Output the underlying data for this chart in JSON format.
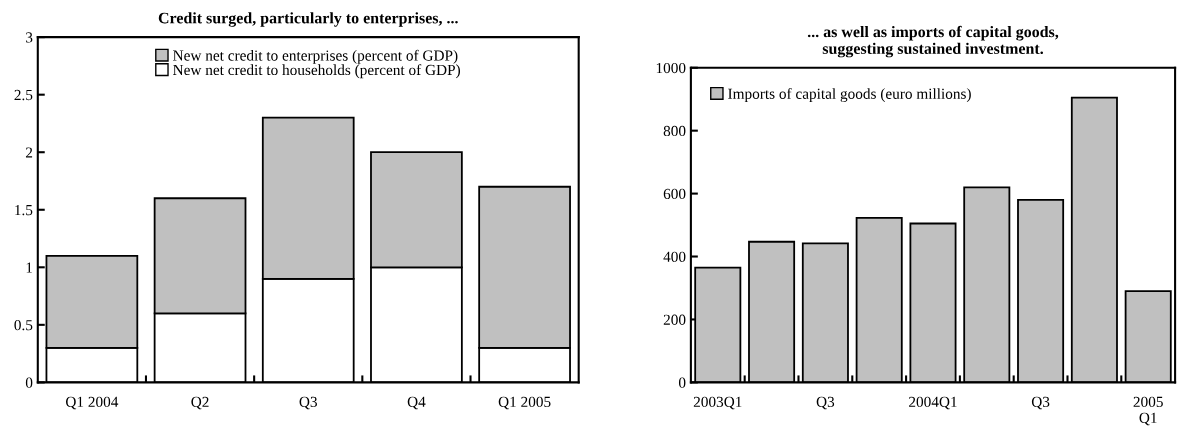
{
  "chart_data": [
    {
      "type": "bar",
      "title": "Credit surged, particularly to enterprises, ...",
      "categories": [
        "Q1 2004",
        "Q2",
        "Q3",
        "Q4",
        "Q1 2005"
      ],
      "stacked": true,
      "series": [
        {
          "name": "New net credit to households (percent of GDP)",
          "color": "#ffffff",
          "values": [
            0.3,
            0.6,
            0.9,
            1.0,
            0.3
          ]
        },
        {
          "name": "New net credit to enterprises (percent of GDP)",
          "color": "#c0c0c0",
          "values": [
            0.8,
            1.0,
            1.4,
            1.0,
            1.4
          ]
        }
      ],
      "ylim": [
        0,
        3
      ],
      "yticks": [
        0,
        0.5,
        1,
        1.5,
        2,
        2.5,
        3
      ],
      "legend": "top",
      "grid": false
    },
    {
      "type": "bar",
      "title": "... as well as imports of capital goods,\nsuggesting sustained investment.",
      "categories": [
        "2003Q1",
        null,
        "Q3",
        null,
        "2004Q1",
        null,
        "Q3",
        null,
        "2005\nQ1"
      ],
      "series": [
        {
          "name": "Imports of capital goods (euro millions)",
          "color": "#c0c0c0",
          "values": [
            365,
            447,
            442,
            523,
            505,
            620,
            580,
            905,
            290
          ]
        }
      ],
      "ylim": [
        0,
        1000
      ],
      "yticks": [
        0,
        200,
        400,
        600,
        800,
        1000
      ],
      "legend": "top left",
      "grid": false
    }
  ]
}
